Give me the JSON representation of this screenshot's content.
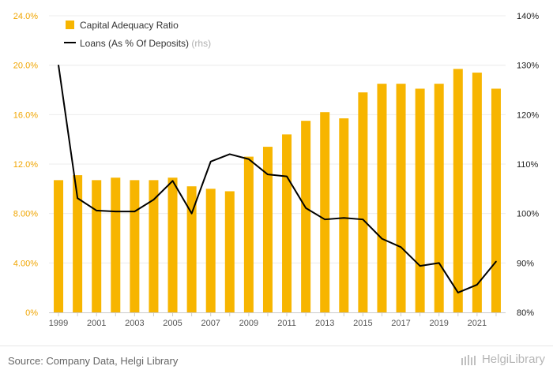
{
  "chart_data": {
    "type": "bar+line",
    "categories": [
      1999,
      2000,
      2001,
      2002,
      2003,
      2004,
      2005,
      2006,
      2007,
      2008,
      2009,
      2010,
      2011,
      2012,
      2013,
      2014,
      2015,
      2016,
      2017,
      2018,
      2019,
      2020,
      2021,
      2022
    ],
    "x_tick_labels": [
      "1999",
      "2001",
      "2003",
      "2005",
      "2007",
      "2009",
      "2011",
      "2013",
      "2015",
      "2017",
      "2019",
      "2021"
    ],
    "series": [
      {
        "name": "Capital Adequacy Ratio",
        "axis": "left",
        "kind": "bar",
        "color": "#f7b500",
        "values": [
          10.7,
          11.1,
          10.7,
          10.9,
          10.7,
          10.7,
          10.9,
          10.2,
          10.0,
          9.8,
          12.6,
          13.4,
          14.4,
          15.5,
          16.2,
          15.7,
          17.8,
          18.5,
          18.5,
          18.1,
          18.5,
          19.7,
          19.4,
          18.1
        ]
      },
      {
        "name": "Loans (As % Of Deposits)",
        "suffix": "(rhs)",
        "axis": "right",
        "kind": "line",
        "color": "#000000",
        "values": [
          130.0,
          103.1,
          100.6,
          100.4,
          100.4,
          102.8,
          106.6,
          100.0,
          110.5,
          112.0,
          111.0,
          107.9,
          107.5,
          101.1,
          98.8,
          99.1,
          98.8,
          94.9,
          93.2,
          89.4,
          90.0,
          84.0,
          85.6,
          90.3
        ]
      }
    ],
    "left_axis": {
      "min": 0,
      "max": 24,
      "ticks": [
        "0%",
        "4.00%",
        "8.00%",
        "12.0%",
        "16.0%",
        "20.0%",
        "24.0%"
      ],
      "tick_values": [
        0,
        4,
        8,
        12,
        16,
        20,
        24
      ]
    },
    "right_axis": {
      "min": 80,
      "max": 140,
      "ticks": [
        "80%",
        "90%",
        "100%",
        "110%",
        "120%",
        "130%",
        "140%"
      ],
      "tick_values": [
        80,
        90,
        100,
        110,
        120,
        130,
        140
      ]
    },
    "legend_position": "top-left",
    "grid": true
  },
  "footer": {
    "source": "Source: Company Data, Helgi Library",
    "brand": "HelgiLibrary"
  },
  "colors": {
    "bar": "#f7b500",
    "line": "#000000",
    "left_tick": "#f0a500",
    "right_tick": "#222222",
    "grid": "#ececec"
  }
}
